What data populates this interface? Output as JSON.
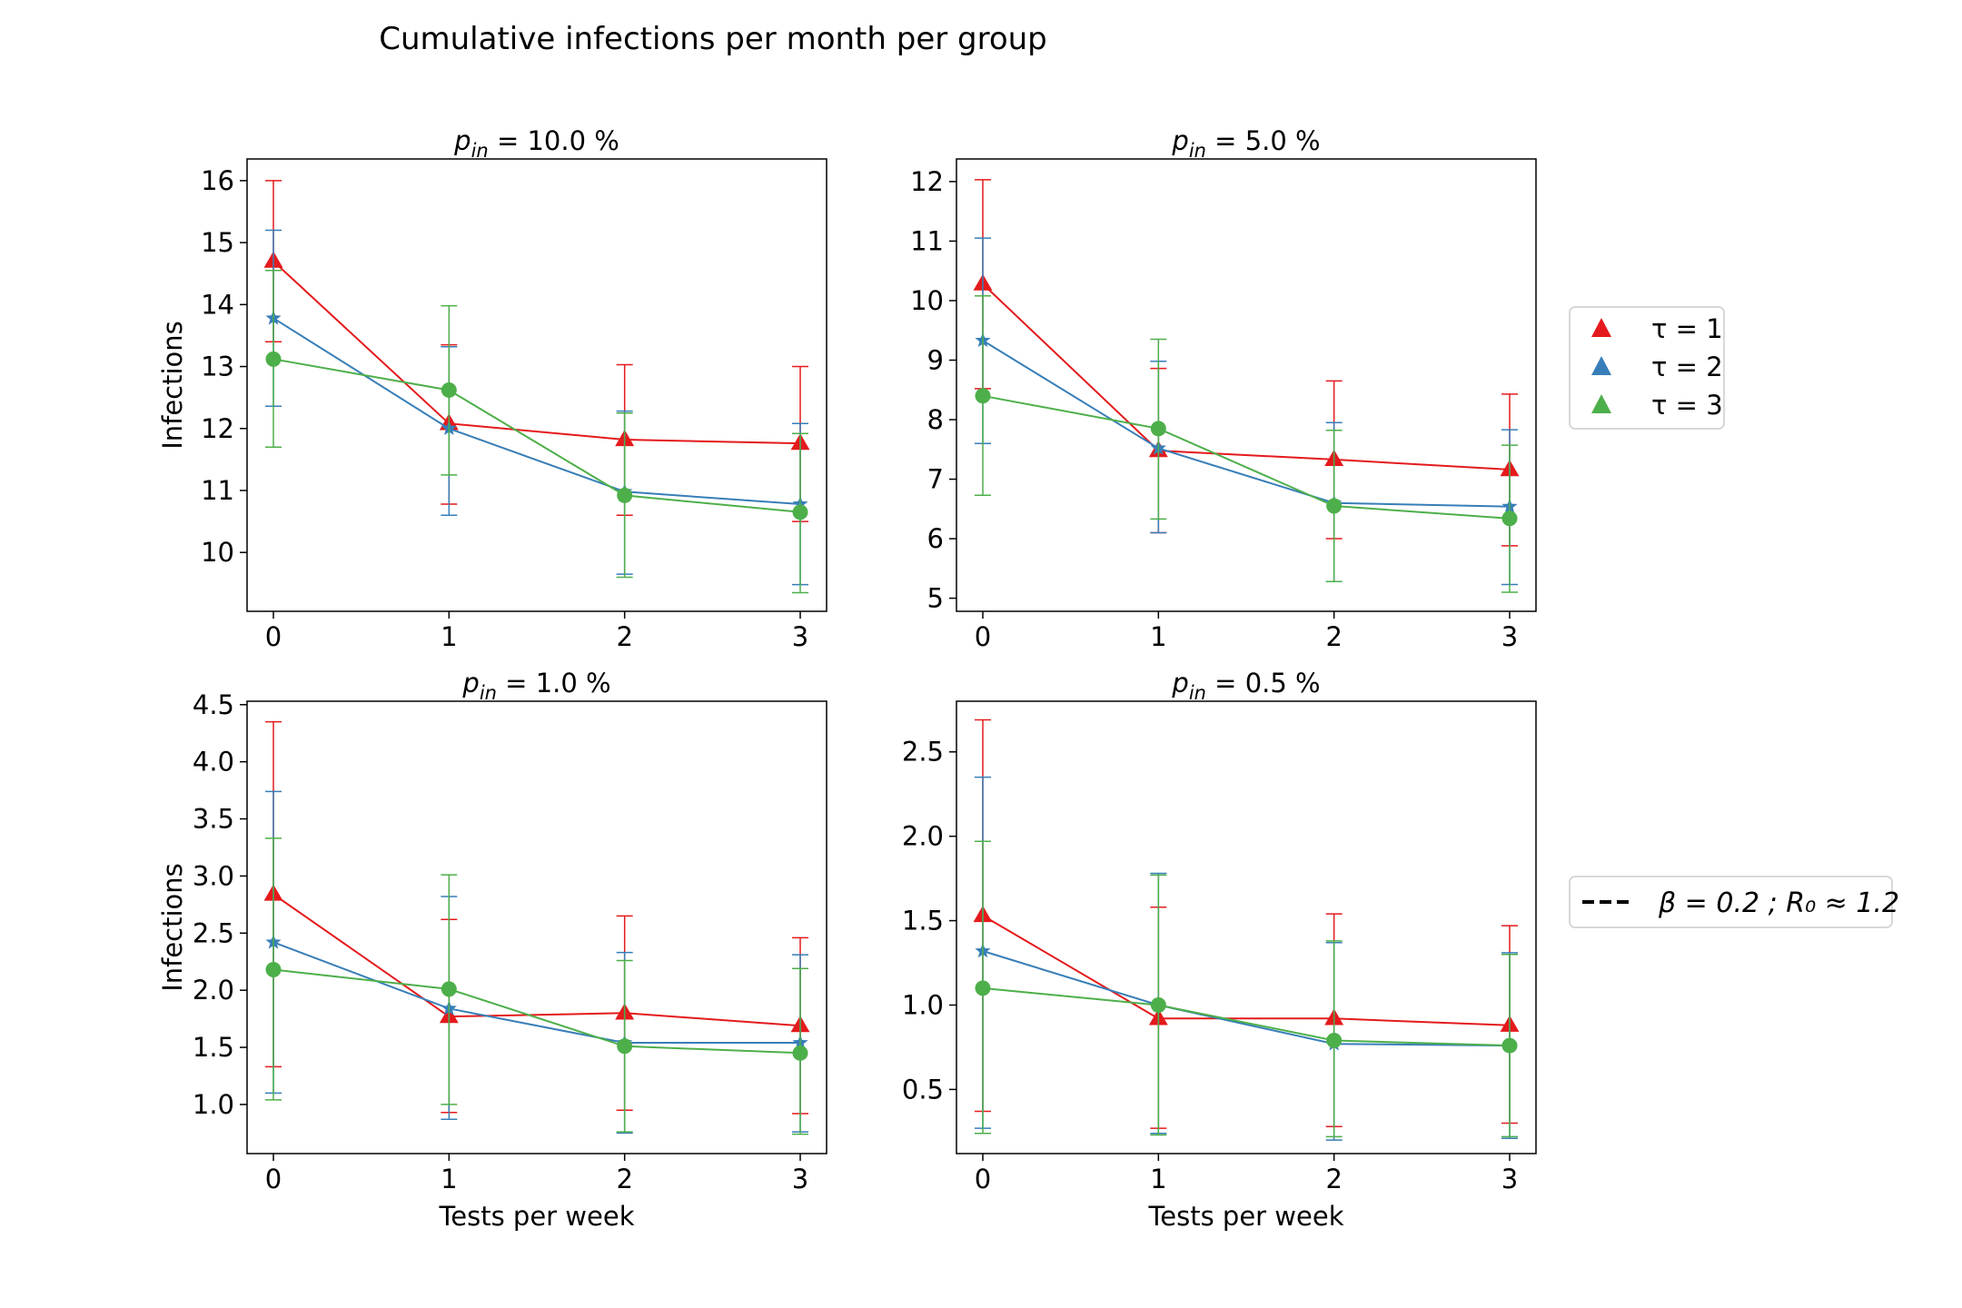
{
  "figure": {
    "title": "Cumulative infections per month per group"
  },
  "legend": {
    "series_title_prefix": "τ = ",
    "note": "β = 0.2 ; R₀ ≈ 1.2"
  },
  "chart_data": [
    {
      "type": "line",
      "title": "p_in = 10.0 %",
      "title_symbol": "p",
      "title_subscript": "in",
      "title_value": " = 10.0 %",
      "xlabel": "",
      "ylabel": "Infections",
      "x": [
        0,
        1,
        2,
        3
      ],
      "xlim": [
        -0.15,
        3.15
      ],
      "ylim": [
        9.05,
        16.35
      ],
      "yticks": [
        10,
        11,
        12,
        13,
        14,
        15,
        16
      ],
      "grid": false,
      "series": [
        {
          "name": "τ = 1",
          "color": "#e41a1c",
          "marker": "triangle",
          "y": [
            14.7,
            12.08,
            11.82,
            11.76
          ],
          "err_low": [
            13.4,
            10.78,
            10.6,
            10.5
          ],
          "err_high": [
            16.0,
            13.35,
            13.03,
            13.0
          ]
        },
        {
          "name": "τ = 2",
          "color": "#377eb8",
          "marker": "star",
          "y": [
            13.78,
            12.0,
            10.98,
            10.78
          ],
          "err_low": [
            12.36,
            10.6,
            9.65,
            9.48
          ],
          "err_high": [
            15.2,
            13.32,
            12.28,
            12.08
          ]
        },
        {
          "name": "τ = 3",
          "color": "#4daf4a",
          "marker": "circle",
          "y": [
            13.12,
            12.62,
            10.92,
            10.65
          ],
          "err_low": [
            11.7,
            11.25,
            9.6,
            9.35
          ],
          "err_high": [
            14.55,
            13.98,
            12.25,
            11.92
          ]
        }
      ]
    },
    {
      "type": "line",
      "title": "p_in = 5.0 %",
      "title_symbol": "p",
      "title_subscript": "in",
      "title_value": " = 5.0 %",
      "xlabel": "",
      "ylabel": "",
      "x": [
        0,
        1,
        2,
        3
      ],
      "xlim": [
        -0.15,
        3.15
      ],
      "ylim": [
        4.78,
        12.38
      ],
      "yticks": [
        5,
        6,
        7,
        8,
        9,
        10,
        11,
        12
      ],
      "grid": false,
      "series": [
        {
          "name": "τ = 1",
          "color": "#e41a1c",
          "marker": "triangle",
          "y": [
            10.28,
            7.48,
            7.33,
            7.16
          ],
          "err_low": [
            8.52,
            6.1,
            6.0,
            5.88
          ],
          "err_high": [
            12.03,
            8.86,
            8.65,
            8.43
          ]
        },
        {
          "name": "τ = 2",
          "color": "#377eb8",
          "marker": "star",
          "y": [
            9.33,
            7.52,
            6.6,
            6.54
          ],
          "err_low": [
            7.6,
            6.1,
            5.28,
            5.23
          ],
          "err_high": [
            11.05,
            8.98,
            7.95,
            7.83
          ]
        },
        {
          "name": "τ = 3",
          "color": "#4daf4a",
          "marker": "circle",
          "y": [
            8.4,
            7.85,
            6.55,
            6.34
          ],
          "err_low": [
            6.73,
            6.33,
            5.28,
            5.1
          ],
          "err_high": [
            10.08,
            9.35,
            7.82,
            7.57
          ]
        }
      ]
    },
    {
      "type": "line",
      "title": "p_in = 1.0 %",
      "title_symbol": "p",
      "title_subscript": "in",
      "title_value": " = 1.0 %",
      "xlabel": "Tests per week",
      "ylabel": "Infections",
      "x": [
        0,
        1,
        2,
        3
      ],
      "xlim": [
        -0.15,
        3.15
      ],
      "ylim": [
        0.57,
        4.53
      ],
      "yticks": [
        1.0,
        1.5,
        2.0,
        2.5,
        3.0,
        3.5,
        4.0,
        4.5
      ],
      "grid": false,
      "series": [
        {
          "name": "τ = 1",
          "color": "#e41a1c",
          "marker": "triangle",
          "y": [
            2.84,
            1.77,
            1.8,
            1.69
          ],
          "err_low": [
            1.33,
            0.93,
            0.95,
            0.92
          ],
          "err_high": [
            4.35,
            2.62,
            2.65,
            2.46
          ]
        },
        {
          "name": "τ = 2",
          "color": "#377eb8",
          "marker": "star",
          "y": [
            2.42,
            1.84,
            1.54,
            1.54
          ],
          "err_low": [
            1.1,
            0.87,
            0.75,
            0.76
          ],
          "err_high": [
            3.74,
            2.82,
            2.33,
            2.31
          ]
        },
        {
          "name": "τ = 3",
          "color": "#4daf4a",
          "marker": "circle",
          "y": [
            2.18,
            2.01,
            1.51,
            1.45
          ],
          "err_low": [
            1.04,
            1.0,
            0.76,
            0.74
          ],
          "err_high": [
            3.33,
            3.01,
            2.26,
            2.19
          ]
        }
      ]
    },
    {
      "type": "line",
      "title": "p_in = 0.5 %",
      "title_symbol": "p",
      "title_subscript": "in",
      "title_value": " = 0.5 %",
      "xlabel": "Tests per week",
      "ylabel": "",
      "x": [
        0,
        1,
        2,
        3
      ],
      "xlim": [
        -0.15,
        3.15
      ],
      "ylim": [
        0.12,
        2.8
      ],
      "yticks": [
        0.5,
        1.0,
        1.5,
        2.0,
        2.5
      ],
      "grid": false,
      "series": [
        {
          "name": "τ = 1",
          "color": "#e41a1c",
          "marker": "triangle",
          "y": [
            1.53,
            0.92,
            0.92,
            0.88
          ],
          "err_low": [
            0.37,
            0.27,
            0.28,
            0.3
          ],
          "err_high": [
            2.69,
            1.58,
            1.54,
            1.47
          ]
        },
        {
          "name": "τ = 2",
          "color": "#377eb8",
          "marker": "star",
          "y": [
            1.32,
            1.0,
            0.77,
            0.76
          ],
          "err_low": [
            0.27,
            0.24,
            0.2,
            0.21
          ],
          "err_high": [
            2.35,
            1.78,
            1.37,
            1.31
          ]
        },
        {
          "name": "τ = 3",
          "color": "#4daf4a",
          "marker": "circle",
          "y": [
            1.1,
            1.0,
            0.79,
            0.76
          ],
          "err_low": [
            0.24,
            0.23,
            0.22,
            0.22
          ],
          "err_high": [
            1.97,
            1.77,
            1.38,
            1.3
          ]
        }
      ]
    }
  ]
}
